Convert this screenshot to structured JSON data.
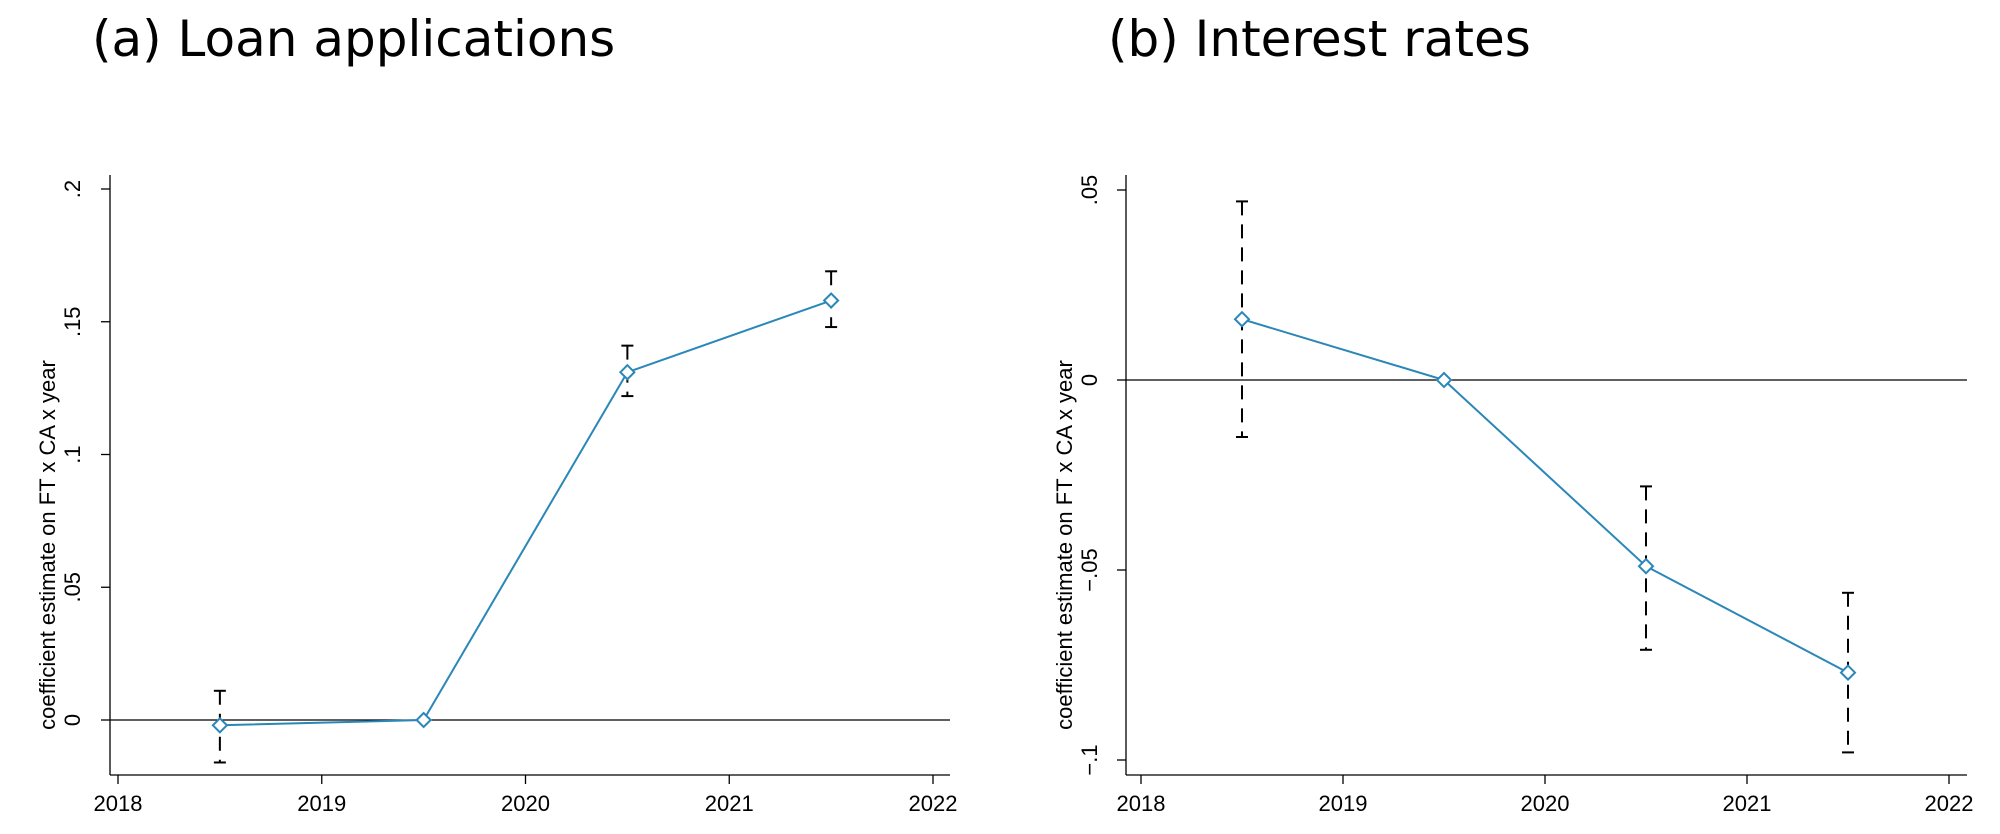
{
  "colors": {
    "series": "#2a87b8",
    "ci": "#000000",
    "axis": "#000000"
  },
  "chart_data": [
    {
      "type": "line",
      "title": "(a)  Loan applications",
      "xlabel": "",
      "ylabel": "coefficient estimate on FT x CA x year",
      "xlim": [
        2018,
        2022
      ],
      "ylim": [
        -0.02,
        0.2
      ],
      "xticks": [
        2018,
        2019,
        2020,
        2021,
        2022
      ],
      "xtick_labels": [
        "2018",
        "2019",
        "2020",
        "2021",
        "2022"
      ],
      "yticks": [
        0,
        0.05,
        0.1,
        0.15,
        0.2
      ],
      "ytick_labels": [
        "0",
        ".05",
        ".1",
        ".15",
        ".2"
      ],
      "reference_line_y": 0,
      "series": [
        {
          "x": [
            2018.5,
            2019.5,
            2020.5,
            2021.5
          ],
          "y": [
            -0.002,
            0,
            0.131,
            0.158
          ],
          "ci_low": [
            -0.016,
            0,
            0.122,
            0.148
          ],
          "ci_high": [
            0.011,
            0,
            0.141,
            0.169
          ]
        }
      ],
      "marker": "diamond",
      "grid": false,
      "legend": "none"
    },
    {
      "type": "line",
      "title": "(b)  Interest rates",
      "xlabel": "",
      "ylabel": "coefficient estimate on FT x CA x year",
      "xlim": [
        2018,
        2022
      ],
      "ylim": [
        -0.101,
        0.053
      ],
      "xticks": [
        2018,
        2019,
        2020,
        2021,
        2022
      ],
      "xtick_labels": [
        "2018",
        "2019",
        "2020",
        "2021",
        "2022"
      ],
      "yticks": [
        -0.1,
        -0.05,
        0,
        0.05
      ],
      "ytick_labels": [
        "−.1",
        "−.05",
        "0",
        ".05"
      ],
      "reference_line_y": 0,
      "series": [
        {
          "x": [
            2018.5,
            2019.5,
            2020.5,
            2021.5
          ],
          "y": [
            0.016,
            0,
            -0.049,
            -0.077
          ],
          "ci_low": [
            -0.015,
            0,
            -0.071,
            -0.098
          ],
          "ci_high": [
            0.047,
            0,
            -0.028,
            -0.056
          ]
        }
      ],
      "marker": "diamond",
      "grid": false,
      "legend": "none"
    }
  ]
}
